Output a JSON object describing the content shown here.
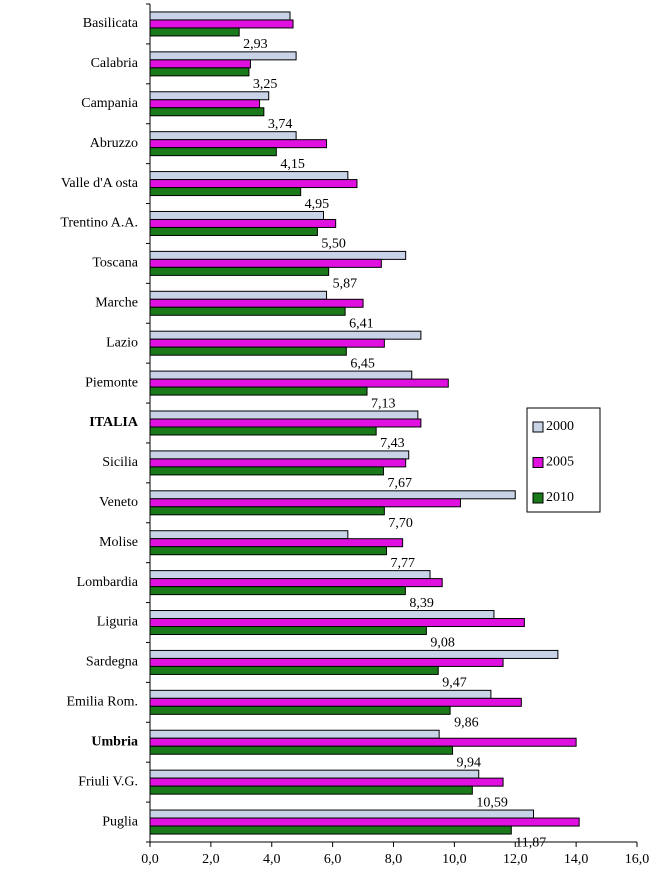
{
  "chart_data": {
    "type": "bar",
    "orientation": "horizontal",
    "categories": [
      "Basilicata",
      "Calabria",
      "Campania",
      "Abruzzo",
      "Valle d'A osta",
      "Trentino A.A.",
      "Toscana",
      "Marche",
      "Lazio",
      "Piemonte",
      "ITALIA",
      "Sicilia",
      "Veneto",
      "Molise",
      "Lombardia",
      "Liguria",
      "Sardegna",
      "Emilia Rom.",
      "Umbria",
      "Friuli V.G.",
      "Puglia"
    ],
    "bold_categories": [
      10,
      18
    ],
    "series": [
      {
        "name": "2000",
        "color": "#c9d3e8",
        "values": [
          4.6,
          4.8,
          3.9,
          4.8,
          6.5,
          5.7,
          8.4,
          5.8,
          8.9,
          8.6,
          8.8,
          8.5,
          12.0,
          6.5,
          9.2,
          11.3,
          13.4,
          11.2,
          9.5,
          10.8,
          12.6
        ]
      },
      {
        "name": "2005",
        "color": "#e010e0",
        "values": [
          4.7,
          3.3,
          3.6,
          5.8,
          6.8,
          6.1,
          7.6,
          7.0,
          7.7,
          9.8,
          8.9,
          8.4,
          10.2,
          8.3,
          9.6,
          12.3,
          11.6,
          12.2,
          14.0,
          11.6,
          14.1
        ]
      },
      {
        "name": "2010",
        "color": "#1a7a1a",
        "values": [
          2.93,
          3.25,
          3.74,
          4.15,
          4.95,
          5.5,
          5.87,
          6.41,
          6.45,
          7.13,
          7.43,
          7.67,
          7.7,
          7.77,
          8.39,
          9.08,
          9.47,
          9.86,
          9.94,
          10.59,
          11.87
        ],
        "value_labels": [
          "2,93",
          "3,25",
          "3,74",
          "4,15",
          "4,95",
          "5,50",
          "5,87",
          "6,41",
          "6,45",
          "7,13",
          "7,43",
          "7,67",
          "7,70",
          "7,77",
          "8,39",
          "9,08",
          "9,47",
          "9,86",
          "9,94",
          "10,59",
          "11,87"
        ]
      }
    ],
    "labeled_series": 2,
    "xlim": [
      0,
      16
    ],
    "xticks": [
      {
        "value": 0,
        "label": "0,0"
      },
      {
        "value": 2,
        "label": "2,0"
      },
      {
        "value": 4,
        "label": "4,0"
      },
      {
        "value": 6,
        "label": "6,0"
      },
      {
        "value": 8,
        "label": "8,0"
      },
      {
        "value": 10,
        "label": "10,0"
      },
      {
        "value": 12,
        "label": "12,0"
      },
      {
        "value": 14,
        "label": "14,0"
      },
      {
        "value": 16,
        "label": "16,0"
      }
    ],
    "legend": "right",
    "grid": false
  }
}
